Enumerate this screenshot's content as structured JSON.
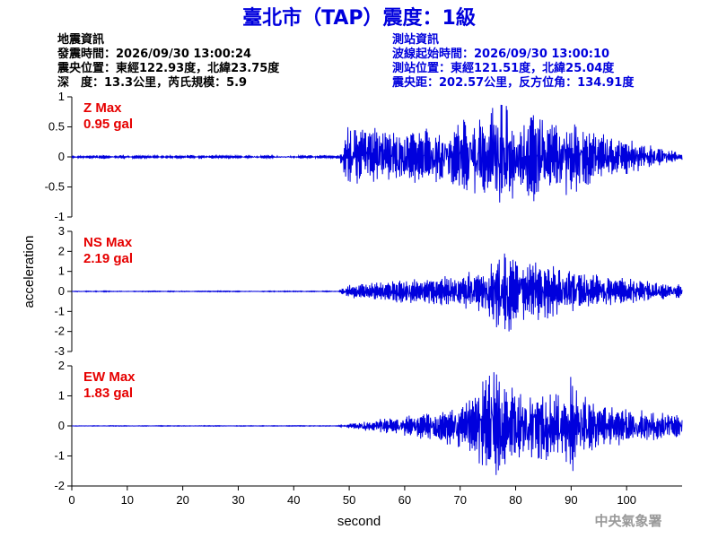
{
  "title": "臺北市（TAP）震度：1級",
  "info_left": {
    "heading": "地震資訊",
    "origin_time": "發震時間：2026/09/30 13:00:24",
    "epicenter": "震央位置：東經122.93度，北緯23.75度",
    "depth_magnitude": "深　度：13.3公里，芮氏規模：5.9"
  },
  "info_right": {
    "heading": "測站資訊",
    "wave_start": "波線起始時間：2026/09/30 13:00:10",
    "station_location": "測站位置：東經121.51度，北緯25.04度",
    "epicentral_distance": "震央距：202.57公里，反方位角：134.91度"
  },
  "credit": "中央氣象署",
  "colors": {
    "trace": "#0000dd",
    "title": "#0000dd",
    "max_label": "#e60000",
    "credit": "#999999"
  },
  "chart_data": {
    "type": "line",
    "xlabel": "second",
    "ylabel": "acceleration",
    "xlim": [
      0,
      110
    ],
    "xticks": [
      0,
      10,
      20,
      30,
      40,
      50,
      60,
      70,
      80,
      90,
      100
    ],
    "grid": false,
    "series": [
      {
        "name": "Z",
        "max_label": "Z Max",
        "max_value": "0.95 gal",
        "ylim": [
          -1,
          1
        ],
        "yticks": [
          -1,
          -0.5,
          0,
          0.5,
          1
        ],
        "ytick_labels": [
          "-1",
          "-0.5",
          "0",
          "0.5",
          "1"
        ],
        "onset": 49,
        "x": [
          0,
          5,
          10,
          15,
          20,
          25,
          30,
          35,
          40,
          45,
          48,
          49,
          50,
          51,
          52,
          53,
          54,
          55,
          56,
          57,
          58,
          59,
          60,
          62,
          64,
          66,
          68,
          70,
          72,
          74,
          75,
          76,
          77,
          78,
          79,
          80,
          82,
          84,
          86,
          88,
          90,
          92,
          94,
          96,
          98,
          100,
          102,
          104,
          106,
          108,
          110
        ],
        "y": [
          0.02,
          -0.03,
          0.03,
          -0.02,
          0.03,
          -0.03,
          0.02,
          -0.03,
          0.02,
          -0.03,
          0.04,
          -0.3,
          0.55,
          -0.5,
          0.45,
          -0.45,
          0.5,
          -0.4,
          0.35,
          -0.45,
          0.4,
          -0.35,
          0.4,
          -0.38,
          0.42,
          -0.4,
          0.35,
          -0.55,
          0.6,
          -0.6,
          0.7,
          -0.85,
          0.9,
          -0.92,
          0.8,
          -0.6,
          0.7,
          -0.65,
          0.55,
          -0.5,
          0.6,
          -0.45,
          0.4,
          -0.35,
          0.3,
          -0.28,
          0.22,
          -0.2,
          0.15,
          -0.1,
          0.05
        ]
      },
      {
        "name": "NS",
        "max_label": "NS Max",
        "max_value": "2.19 gal",
        "ylim": [
          -3,
          3
        ],
        "yticks": [
          -3,
          -2,
          -1,
          0,
          1,
          2,
          3
        ],
        "ytick_labels": [
          "-3",
          "-2",
          "-1",
          "0",
          "1",
          "2",
          "3"
        ],
        "onset": 50,
        "x": [
          0,
          10,
          20,
          30,
          40,
          48,
          50,
          52,
          54,
          56,
          58,
          60,
          62,
          64,
          66,
          68,
          70,
          72,
          74,
          75,
          76,
          77,
          78,
          79,
          80,
          82,
          84,
          86,
          88,
          90,
          92,
          94,
          96,
          98,
          100,
          102,
          104,
          106,
          108,
          110
        ],
        "y": [
          0.02,
          -0.02,
          0.02,
          -0.02,
          0.02,
          -0.02,
          0.3,
          -0.35,
          0.4,
          -0.4,
          0.5,
          -0.5,
          0.55,
          -0.6,
          0.6,
          -0.7,
          0.8,
          -0.9,
          1.0,
          -1.2,
          1.5,
          -1.8,
          2.19,
          -1.9,
          1.5,
          -1.3,
          1.4,
          -1.2,
          1.1,
          -1.0,
          0.9,
          -0.8,
          0.7,
          -0.6,
          0.6,
          -0.5,
          0.5,
          -0.4,
          0.4,
          -0.3
        ]
      },
      {
        "name": "EW",
        "max_label": "EW Max",
        "max_value": "1.83 gal",
        "ylim": [
          -2,
          2
        ],
        "yticks": [
          -2,
          -1,
          0,
          1,
          2
        ],
        "ytick_labels": [
          "-2",
          "-1",
          "0",
          "1",
          "2"
        ],
        "onset": 51,
        "x": [
          0,
          10,
          20,
          30,
          40,
          48,
          51,
          53,
          55,
          58,
          60,
          62,
          64,
          66,
          68,
          70,
          72,
          73,
          74,
          75,
          76,
          77,
          78,
          80,
          82,
          84,
          86,
          88,
          90,
          91,
          92,
          94,
          96,
          98,
          100,
          102,
          104,
          106,
          108,
          110
        ],
        "y": [
          0.01,
          -0.01,
          0.01,
          -0.01,
          0.01,
          -0.01,
          0.1,
          -0.15,
          0.2,
          -0.25,
          0.3,
          -0.35,
          0.45,
          -0.5,
          0.55,
          -0.7,
          0.9,
          -1.1,
          1.3,
          -1.83,
          1.6,
          -1.5,
          1.3,
          -1.2,
          1.1,
          -1.0,
          1.0,
          -0.9,
          1.5,
          -1.1,
          0.9,
          -0.8,
          0.7,
          -0.65,
          0.6,
          -0.55,
          0.5,
          -0.45,
          0.4,
          -0.3
        ]
      }
    ]
  }
}
